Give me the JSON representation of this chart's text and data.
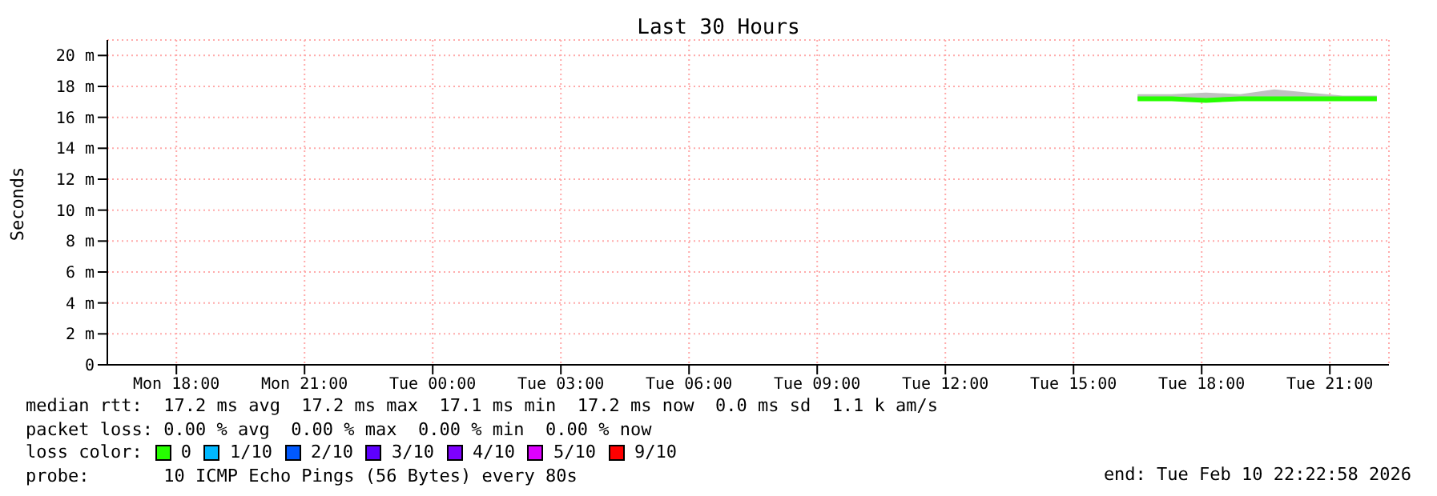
{
  "chart_data": {
    "type": "line",
    "title": "Last 30 Hours",
    "ylabel": "Seconds",
    "legend_title": "loss color:",
    "legend": "bottom",
    "grid": true,
    "marker": "none",
    "line_style": "solid",
    "x": [
      "2026-02-10T16:30",
      "2026-02-10T17:18",
      "2026-02-10T18:06",
      "2026-02-10T18:54",
      "2026-02-10T19:42",
      "2026-02-10T20:30",
      "2026-02-10T21:18",
      "2026-02-10T22:06"
    ],
    "xlim": [
      "2026-02-09T16:23",
      "2026-02-10T22:23"
    ],
    "xticks": [
      {
        "value": "2026-02-09T18:00",
        "label": "Mon 18:00"
      },
      {
        "value": "2026-02-09T21:00",
        "label": "Mon 21:00"
      },
      {
        "value": "2026-02-10T00:00",
        "label": "Tue 00:00"
      },
      {
        "value": "2026-02-10T03:00",
        "label": "Tue 03:00"
      },
      {
        "value": "2026-02-10T06:00",
        "label": "Tue 06:00"
      },
      {
        "value": "2026-02-10T09:00",
        "label": "Tue 09:00"
      },
      {
        "value": "2026-02-10T12:00",
        "label": "Tue 12:00"
      },
      {
        "value": "2026-02-10T15:00",
        "label": "Tue 15:00"
      },
      {
        "value": "2026-02-10T18:00",
        "label": "Tue 18:00"
      },
      {
        "value": "2026-02-10T21:00",
        "label": "Tue 21:00"
      }
    ],
    "ylim": [
      0,
      21
    ],
    "yticks": [
      0,
      {
        "value": 2,
        "label": "2 m"
      },
      {
        "value": 4,
        "label": "4 m"
      },
      {
        "value": 6,
        "label": "6 m"
      },
      {
        "value": 8,
        "label": "8 m"
      },
      {
        "value": 10,
        "label": "10 m"
      },
      {
        "value": 12,
        "label": "12 m"
      },
      {
        "value": 14,
        "label": "14 m"
      },
      {
        "value": 16,
        "label": "16 m"
      },
      {
        "value": 18,
        "label": "18 m"
      },
      {
        "value": 20,
        "label": "20 m"
      }
    ],
    "series": [
      {
        "name": "0",
        "color": "#26ff00",
        "values": [
          17.2,
          17.2,
          17.1,
          17.2,
          17.2,
          17.2,
          17.2,
          17.2
        ],
        "lower": [
          17.1,
          17.1,
          17.0,
          17.1,
          17.1,
          17.1,
          17.1,
          17.1
        ],
        "upper": [
          17.5,
          17.5,
          17.6,
          17.5,
          17.8,
          17.6,
          17.4,
          17.4
        ]
      },
      {
        "name": "1/10",
        "color": "#00b8ff",
        "values": [
          null,
          null,
          null,
          null,
          null,
          null,
          null,
          null
        ]
      },
      {
        "name": "2/10",
        "color": "#0059ff",
        "values": [
          null,
          null,
          null,
          null,
          null,
          null,
          null,
          null
        ]
      },
      {
        "name": "3/10",
        "color": "#5e00ff",
        "values": [
          null,
          null,
          null,
          null,
          null,
          null,
          null,
          null
        ]
      },
      {
        "name": "4/10",
        "color": "#7e00ff",
        "values": [
          null,
          null,
          null,
          null,
          null,
          null,
          null,
          null
        ]
      },
      {
        "name": "5/10",
        "color": "#dd00ff",
        "values": [
          null,
          null,
          null,
          null,
          null,
          null,
          null,
          null
        ]
      },
      {
        "name": "9/10",
        "color": "#ff0000",
        "values": [
          null,
          null,
          null,
          null,
          null,
          null,
          null,
          null
        ]
      }
    ],
    "annotations": [
      "median rtt:  17.2 ms avg  17.2 ms max  17.1 ms min  17.2 ms now  0.0 ms sd  1.1 k am/s",
      "packet loss: 0.00 % avg  0.00 % max  0.00 % min  0.00 % now",
      "probe:       10 ICMP Echo Pings (56 Bytes) every 80s",
      "end: Tue Feb 10 22:22:58 2026"
    ]
  }
}
